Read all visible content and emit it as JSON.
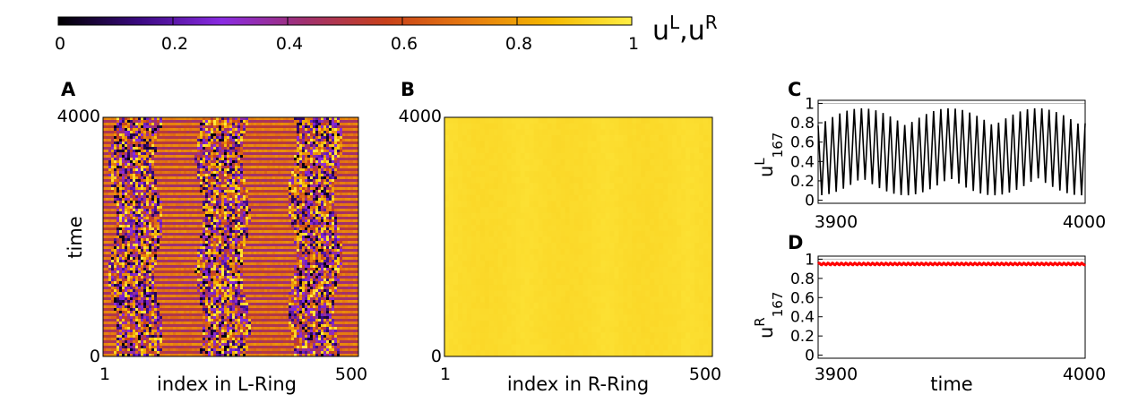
{
  "colorbar": {
    "ticks": [
      "0",
      "0.2",
      "0.4",
      "0.6",
      "0.8",
      "1"
    ],
    "label": "u",
    "label_sup1": "L",
    "label_sep": ",u",
    "label_sup2": "R",
    "colormap": [
      "#000000",
      "#3b0a82",
      "#8a2be2",
      "#a03070",
      "#c8401a",
      "#e67a10",
      "#f4b800",
      "#ffee44"
    ]
  },
  "panels": {
    "A": {
      "letter": "A",
      "ylabel": "time",
      "xlabel": "index in L-Ring",
      "xmin": "1",
      "xmax": "500",
      "ymin": "0",
      "ymax": "4000"
    },
    "B": {
      "letter": "B",
      "xlabel": "index in R-Ring",
      "xmin": "1",
      "xmax": "500",
      "ymin": "0",
      "ymax": "4000"
    },
    "C": {
      "letter": "C",
      "ylabel_base": "u",
      "ylabel_sup": "L",
      "ylabel_sub": "167",
      "xmin": "3900",
      "xmax": "4000",
      "yticks": [
        "0",
        "0.2",
        "0.4",
        "0.6",
        "0.8",
        "1"
      ]
    },
    "D": {
      "letter": "D",
      "ylabel_base": "u",
      "ylabel_sup": "R",
      "ylabel_sub": "167",
      "xlabel": "time",
      "xmin": "3900",
      "xmax": "4000",
      "yticks": [
        "0",
        "0.2",
        "0.4",
        "0.6",
        "0.8",
        "1"
      ]
    }
  },
  "chart_data": [
    {
      "type": "heatmap",
      "panel": "A",
      "xlabel": "index in L-Ring",
      "ylabel": "time",
      "xlim": [
        1,
        500
      ],
      "ylim": [
        0,
        4000
      ],
      "zlim": [
        0,
        1
      ],
      "description_bands_incoherent_center": [
        65,
        235,
        415
      ],
      "description_bands_incoherent_halfwidth": 45,
      "coherent_mean_value": 0.55,
      "incoherent_values_range": [
        0.0,
        1.0
      ]
    },
    {
      "type": "heatmap",
      "panel": "B",
      "xlabel": "index in R-Ring",
      "xlim": [
        1,
        500
      ],
      "ylim": [
        0,
        4000
      ],
      "zlim": [
        0,
        1
      ],
      "typical_value": 0.96
    },
    {
      "type": "line",
      "panel": "C",
      "series": [
        {
          "color": "#000000",
          "mean": 0.5,
          "amplitude": 0.45,
          "oscillations": 37
        }
      ],
      "xlim": [
        3900,
        4000
      ],
      "ylim": [
        0,
        1
      ]
    },
    {
      "type": "line",
      "panel": "D",
      "xlabel": "time",
      "series": [
        {
          "color": "#ff0000",
          "mean": 0.95,
          "amplitude": 0.01,
          "oscillations": 60
        }
      ],
      "xlim": [
        3900,
        4000
      ],
      "ylim": [
        0,
        1
      ]
    }
  ]
}
